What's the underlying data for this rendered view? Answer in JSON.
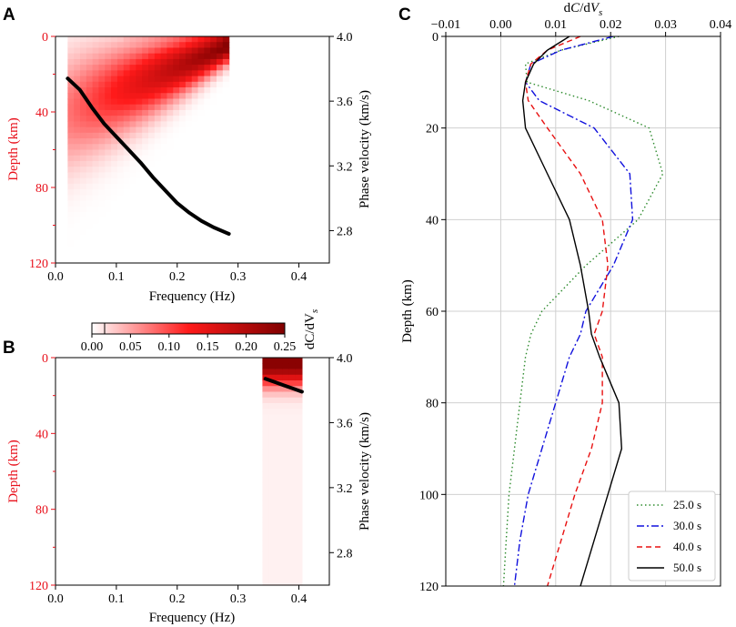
{
  "panel_labels": {
    "a": "A",
    "b": "B",
    "c": "C"
  },
  "colors": {
    "depth_axis": "#e8101b",
    "sens_light": "#ffffff",
    "sens_mid": "#ff1a1a",
    "sens_dark": "#800000",
    "s25": "#2e8b2e",
    "s30": "#1010dd",
    "s40": "#e81010",
    "s50": "#000000",
    "grid": "#d0d0d0"
  },
  "colorbar": {
    "label": "dC/dV_s",
    "label_main": "dC/dV",
    "label_sub": "s",
    "ticks": [
      "0.00",
      "0.05",
      "0.10",
      "0.15",
      "0.20",
      "0.25"
    ],
    "range": [
      0,
      0.25
    ]
  },
  "chart_data": [
    {
      "panel": "A",
      "type": "heatmap",
      "xlabel": "Frequency (Hz)",
      "ylabel_left": "Depth (km)",
      "ylabel_right": "Phase velocity (km/s)",
      "xlim": [
        0.0,
        0.45
      ],
      "ylim_left": [
        120,
        0
      ],
      "ylim_right": [
        2.6,
        4.0
      ],
      "xticks": [
        "0.0",
        "0.1",
        "0.2",
        "0.3",
        "0.4"
      ],
      "yticks_left": [
        "0",
        "40",
        "80",
        "120"
      ],
      "yticks_right": [
        "4.0",
        "3.6",
        "3.2",
        "2.8"
      ],
      "heatmap_freq_range": [
        0.02,
        0.285
      ],
      "dispersion_curve": {
        "freq": [
          0.02,
          0.04,
          0.06,
          0.08,
          0.1,
          0.12,
          0.14,
          0.16,
          0.18,
          0.2,
          0.22,
          0.24,
          0.26,
          0.285
        ],
        "velocity": [
          3.74,
          3.67,
          3.56,
          3.46,
          3.38,
          3.3,
          3.22,
          3.13,
          3.05,
          2.97,
          2.91,
          2.86,
          2.82,
          2.78
        ]
      }
    },
    {
      "panel": "B",
      "type": "heatmap",
      "xlabel": "Frequency (Hz)",
      "ylabel_left": "Depth (km)",
      "ylabel_right": "Phase velocity (km/s)",
      "xlim": [
        0.0,
        0.45
      ],
      "ylim_left": [
        120,
        0
      ],
      "ylim_right": [
        2.6,
        4.0
      ],
      "xticks": [
        "0.0",
        "0.1",
        "0.2",
        "0.3",
        "0.4"
      ],
      "yticks_left": [
        "0",
        "40",
        "80",
        "120"
      ],
      "yticks_right": [
        "4.0",
        "3.6",
        "3.2",
        "2.8"
      ],
      "heatmap_freq_range": [
        0.34,
        0.405
      ],
      "dispersion_curve": {
        "freq": [
          0.345,
          0.36,
          0.375,
          0.39,
          0.405
        ],
        "velocity": [
          3.87,
          3.85,
          3.83,
          3.81,
          3.79
        ]
      }
    },
    {
      "panel": "C",
      "type": "line",
      "xlabel": "dC/dV_s",
      "ylabel": "Depth (km)",
      "xlim": [
        -0.01,
        0.04
      ],
      "ylim": [
        120,
        0
      ],
      "xticks": [
        "−0.01",
        "0.00",
        "0.01",
        "0.02",
        "0.03",
        "0.04"
      ],
      "yticks": [
        "0",
        "20",
        "40",
        "60",
        "80",
        "100",
        "120"
      ],
      "grid": true,
      "legend_position": "bottom-right",
      "depth": [
        0,
        3,
        6,
        10,
        14,
        20,
        30,
        40,
        50,
        60,
        65,
        70,
        80,
        90,
        100,
        110,
        120
      ],
      "series": [
        {
          "name": "25.0 s",
          "style": "dotted",
          "values": [
            0.0215,
            0.011,
            0.0045,
            0.0048,
            0.016,
            0.027,
            0.0295,
            0.025,
            0.0155,
            0.0075,
            0.0055,
            0.0045,
            0.0035,
            0.0025,
            0.0015,
            0.001,
            0.0005
          ]
        },
        {
          "name": "30.0 s",
          "style": "dashdot",
          "values": [
            0.0205,
            0.011,
            0.0055,
            0.0045,
            0.007,
            0.017,
            0.0235,
            0.024,
            0.0205,
            0.0155,
            0.0145,
            0.0125,
            0.01,
            0.0075,
            0.005,
            0.0035,
            0.0025
          ]
        },
        {
          "name": "40.0 s",
          "style": "dashed",
          "values": [
            0.0145,
            0.0085,
            0.0055,
            0.0045,
            0.005,
            0.0085,
            0.0145,
            0.0185,
            0.0195,
            0.0185,
            0.017,
            0.0185,
            0.0185,
            0.0165,
            0.0135,
            0.011,
            0.0085
          ]
        },
        {
          "name": "50.0 s",
          "style": "solid",
          "values": [
            0.0125,
            0.0085,
            0.006,
            0.0045,
            0.004,
            0.0045,
            0.0085,
            0.0125,
            0.0145,
            0.016,
            0.0165,
            0.018,
            0.0215,
            0.022,
            0.0195,
            0.017,
            0.0145
          ]
        }
      ]
    }
  ]
}
